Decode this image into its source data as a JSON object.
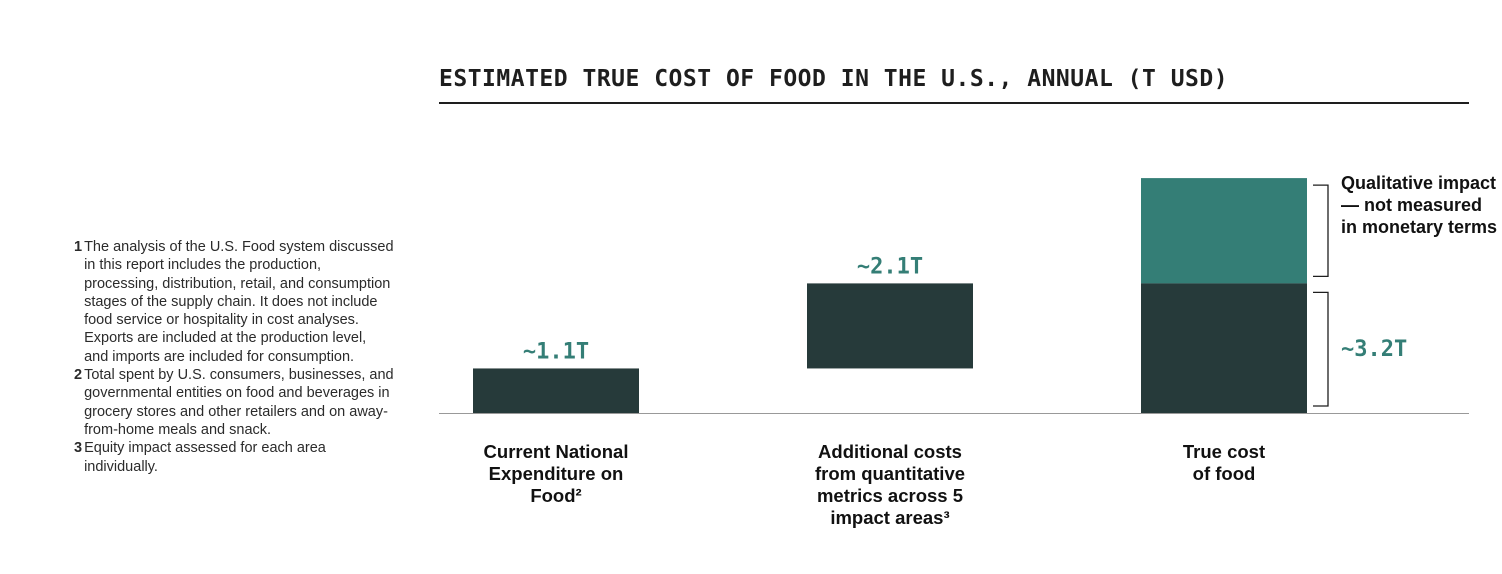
{
  "title": "ESTIMATED TRUE COST OF FOOD IN THE U.S., ANNUAL (T USD)",
  "colors": {
    "dark": "#263a3a",
    "teal": "#347e76",
    "value_text": "#347e76",
    "axis": "#999999",
    "bracket": "#1e1e1e"
  },
  "footnotes": [
    {
      "num": "1",
      "text": "The analysis of the U.S. Food system discussed in this report includes the production, processing, distribution, retail, and consumption stages of the supply chain. It does not include food service or hospitality in cost analyses. Exports are included at the production level, and imports are included for consumption."
    },
    {
      "num": "2",
      "text": "Total spent by U.S. consumers, businesses, and governmental entities on food and beverages in grocery stores and other retailers and on away-from-home meals and snack."
    },
    {
      "num": "3",
      "text": "Equity impact assessed for each area individually."
    }
  ],
  "chart_data": {
    "type": "bar",
    "subtype": "waterfall",
    "title": "ESTIMATED TRUE COST OF FOOD IN THE U.S., ANNUAL (T USD)",
    "unit": "T USD",
    "categories": [
      {
        "label_lines": [
          "Current National",
          "Expenditure on",
          "Food²"
        ]
      },
      {
        "label_lines": [
          "Additional costs",
          "from quantitative",
          "metrics across 5",
          "impact areas³"
        ]
      },
      {
        "label_lines": [
          "True cost",
          "of food"
        ]
      }
    ],
    "bars": [
      {
        "category_index": 0,
        "base": 0,
        "value": 1.1,
        "label": "~1.1T"
      },
      {
        "category_index": 1,
        "base": 1.1,
        "value": 2.1,
        "label": "~2.1T"
      },
      {
        "category_index": 2,
        "base": 0,
        "value": 3.2,
        "label": "~3.2T",
        "qualitative_extension": 2.6
      }
    ],
    "annotation_qualitative": "Qualitative impact— not measured in monetary terms",
    "ylim": [
      0,
      6.5
    ],
    "grid": false,
    "legend": "none"
  }
}
